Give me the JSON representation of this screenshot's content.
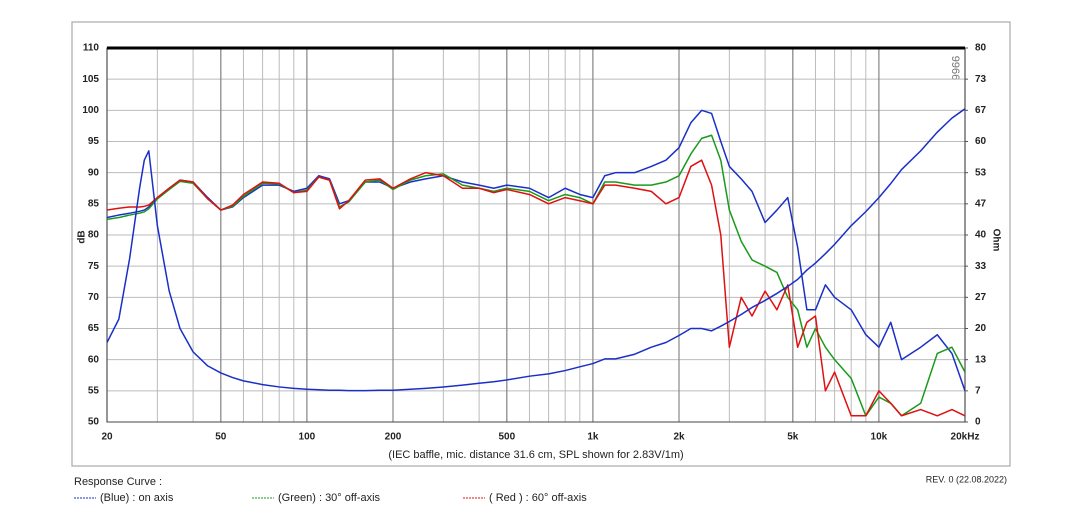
{
  "chart_data": {
    "type": "line",
    "ylabel": "dB",
    "y2label": "Ohm",
    "caption": "(IEC baffle, mic. distance 31.6 cm, SPL shown for 2.83V/1m)",
    "legend_title": "Response Curve :",
    "revision": "REV. 0 (22.08.2022)",
    "watermark": "9966",
    "xscale": "log",
    "xlim": [
      20,
      20000
    ],
    "xticks": [
      20,
      50,
      100,
      200,
      500,
      {
        "value": 1000,
        "label": "1k"
      },
      {
        "value": 2000,
        "label": "2k"
      },
      {
        "value": 5000,
        "label": "5k"
      },
      {
        "value": 10000,
        "label": "10k"
      },
      {
        "value": 20000,
        "label": "20kHz"
      }
    ],
    "ylim": [
      50,
      110
    ],
    "yticks": [
      50,
      55,
      60,
      65,
      70,
      75,
      80,
      85,
      90,
      95,
      100,
      105,
      110
    ],
    "y2lim": [
      0,
      80
    ],
    "y2ticks": [
      0,
      {
        "value": 6.667,
        "label": "7"
      },
      {
        "value": 13.333,
        "label": "13"
      },
      20,
      {
        "value": 26.667,
        "label": "27"
      },
      {
        "value": 33.333,
        "label": "33"
      },
      40,
      {
        "value": 46.667,
        "label": "47"
      },
      {
        "value": 53.333,
        "label": "53"
      },
      60,
      {
        "value": 66.667,
        "label": "67"
      },
      {
        "value": 73.333,
        "label": "73"
      },
      80
    ],
    "grid": true,
    "x": [
      20,
      22,
      24,
      26,
      27,
      28,
      30,
      33,
      36,
      40,
      45,
      50,
      55,
      60,
      70,
      80,
      90,
      100,
      110,
      120,
      130,
      140,
      160,
      180,
      200,
      230,
      260,
      300,
      350,
      400,
      450,
      500,
      600,
      700,
      800,
      900,
      1000,
      1100,
      1200,
      1400,
      1600,
      1800,
      2000,
      2200,
      2400,
      2600,
      2800,
      3000,
      3300,
      3600,
      4000,
      4400,
      4800,
      5200,
      5600,
      6000,
      6500,
      7000,
      8000,
      9000,
      10000,
      11000,
      12000,
      14000,
      16000,
      18000,
      20000
    ],
    "series": [
      {
        "name": "(Blue)  : on axis",
        "color": "#1a2fc8",
        "values": [
          82.8,
          83.2,
          83.5,
          83.8,
          84,
          84.5,
          86,
          87.5,
          88.8,
          88.5,
          86,
          84,
          84.5,
          86,
          88,
          88,
          87,
          87.5,
          89.5,
          89,
          85,
          85.5,
          88.5,
          88.5,
          87.5,
          88.5,
          89,
          89.5,
          88.5,
          88,
          87.5,
          88,
          87.5,
          86,
          87.5,
          86.5,
          86,
          89.5,
          90,
          90,
          91,
          92,
          94,
          98,
          100,
          99.5,
          95,
          91,
          89,
          87,
          82,
          84,
          86,
          78,
          68,
          68,
          72,
          70,
          68,
          64,
          62,
          66,
          60,
          62,
          64,
          61,
          55
        ]
      },
      {
        "name": "(Green) : 30° off-axis",
        "color": "#1a9a1a",
        "values": [
          82.5,
          82.8,
          83.2,
          83.5,
          83.7,
          84.2,
          85.8,
          87.3,
          88.6,
          88.3,
          85.8,
          84,
          84.6,
          86.2,
          88.3,
          88.2,
          86.8,
          87.2,
          89.3,
          88.8,
          84.5,
          85.3,
          88.5,
          88.8,
          87.3,
          88.8,
          89.5,
          89.8,
          88,
          87.5,
          87,
          87.5,
          87,
          85.5,
          86.5,
          86,
          85,
          88.5,
          88.5,
          88,
          88,
          88.5,
          89.5,
          93,
          95.5,
          96,
          92,
          84,
          79,
          76,
          75,
          74,
          70,
          68,
          62,
          65,
          62,
          60,
          57,
          51,
          54,
          53,
          51,
          53,
          61,
          62,
          58
        ]
      },
      {
        "name": "( Red ) : 60° off-axis",
        "color": "#e01010",
        "values": [
          84,
          84.3,
          84.5,
          84.5,
          84.6,
          84.8,
          86,
          87.5,
          88.8,
          88.5,
          85.8,
          84,
          84.8,
          86.5,
          88.5,
          88.3,
          86.8,
          87,
          89.3,
          88.8,
          84.2,
          85.5,
          88.8,
          89,
          87.5,
          89,
          90,
          89.5,
          87.5,
          87.5,
          86.8,
          87.3,
          86.5,
          85,
          86,
          85.5,
          85,
          88,
          88,
          87.5,
          87,
          85,
          86,
          91,
          92,
          88,
          80,
          62,
          70,
          67,
          71,
          68,
          72,
          62,
          66,
          67,
          55,
          58,
          51,
          51,
          55,
          53,
          51,
          52,
          51,
          52,
          51
        ]
      },
      {
        "color": "#1a2fc8",
        "axis": "y2",
        "values": [
          17,
          22,
          35,
          50,
          56,
          58,
          42,
          28,
          20,
          15,
          12,
          10.5,
          9.5,
          8.8,
          8,
          7.5,
          7.2,
          7,
          6.9,
          6.8,
          6.8,
          6.7,
          6.7,
          6.8,
          6.8,
          7,
          7.2,
          7.5,
          7.9,
          8.3,
          8.6,
          9,
          9.8,
          10.3,
          11,
          11.8,
          12.5,
          13.5,
          13.5,
          14.5,
          16,
          17,
          18.5,
          20,
          20,
          19.5,
          20.5,
          21.5,
          23,
          24.5,
          26,
          27.5,
          29,
          30.5,
          32.5,
          34,
          36,
          38,
          42,
          45,
          48,
          51,
          54,
          58,
          62,
          65,
          67
        ]
      }
    ]
  }
}
